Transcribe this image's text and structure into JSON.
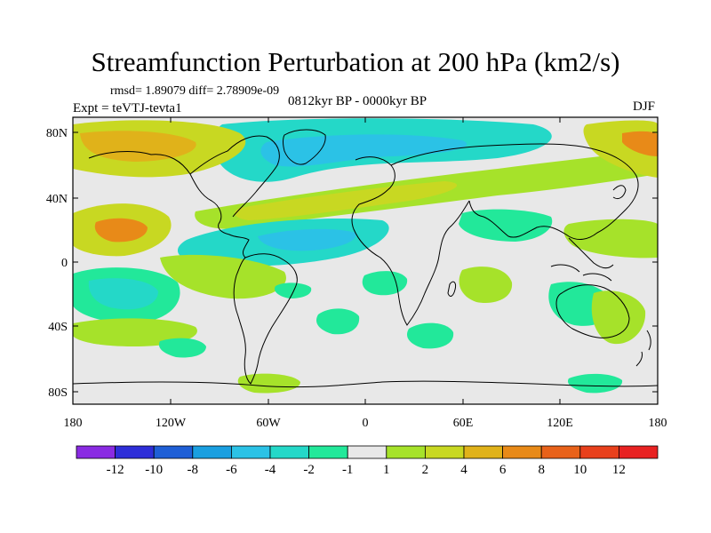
{
  "figure": {
    "title": "Streamfunction Perturbation at 200 hPa (km2/s)",
    "stats": "rmsd= 1.89079 diff= 2.78909e-09",
    "period": "0812kyr BP - 0000kyr BP",
    "experiment": "Expt = teVTJ-tevta1",
    "season": "DJF"
  },
  "axes": {
    "x_ticks": [
      "180",
      "120W",
      "60W",
      "0",
      "60E",
      "120E",
      "180"
    ],
    "y_ticks": [
      "80N",
      "40N",
      "0",
      "40S",
      "80S"
    ]
  },
  "colorbar": {
    "labels": [
      "-12",
      "-10",
      "-8",
      "-6",
      "-4",
      "-2",
      "-1",
      "1",
      "2",
      "4",
      "6",
      "8",
      "10",
      "12"
    ],
    "colors": [
      "#8a2be2",
      "#2e2ed8",
      "#1f5fd6",
      "#1a9fe0",
      "#2bc2e6",
      "#24d8c8",
      "#22e89a",
      "#e8e8e8",
      "#a6e22a",
      "#c8d822",
      "#e0b21a",
      "#e88a18",
      "#e8621a",
      "#e8401c",
      "#e82222"
    ]
  },
  "colors": {
    "background": "#e8e8e8",
    "neg_light": "#22e89a",
    "neg_mid": "#24d8c8",
    "neg_strong": "#2bc2e6",
    "pos_light": "#a6e22a",
    "pos_mid": "#c8d822",
    "pos_strong": "#e0b21a",
    "pos_stronger": "#e88a18"
  }
}
